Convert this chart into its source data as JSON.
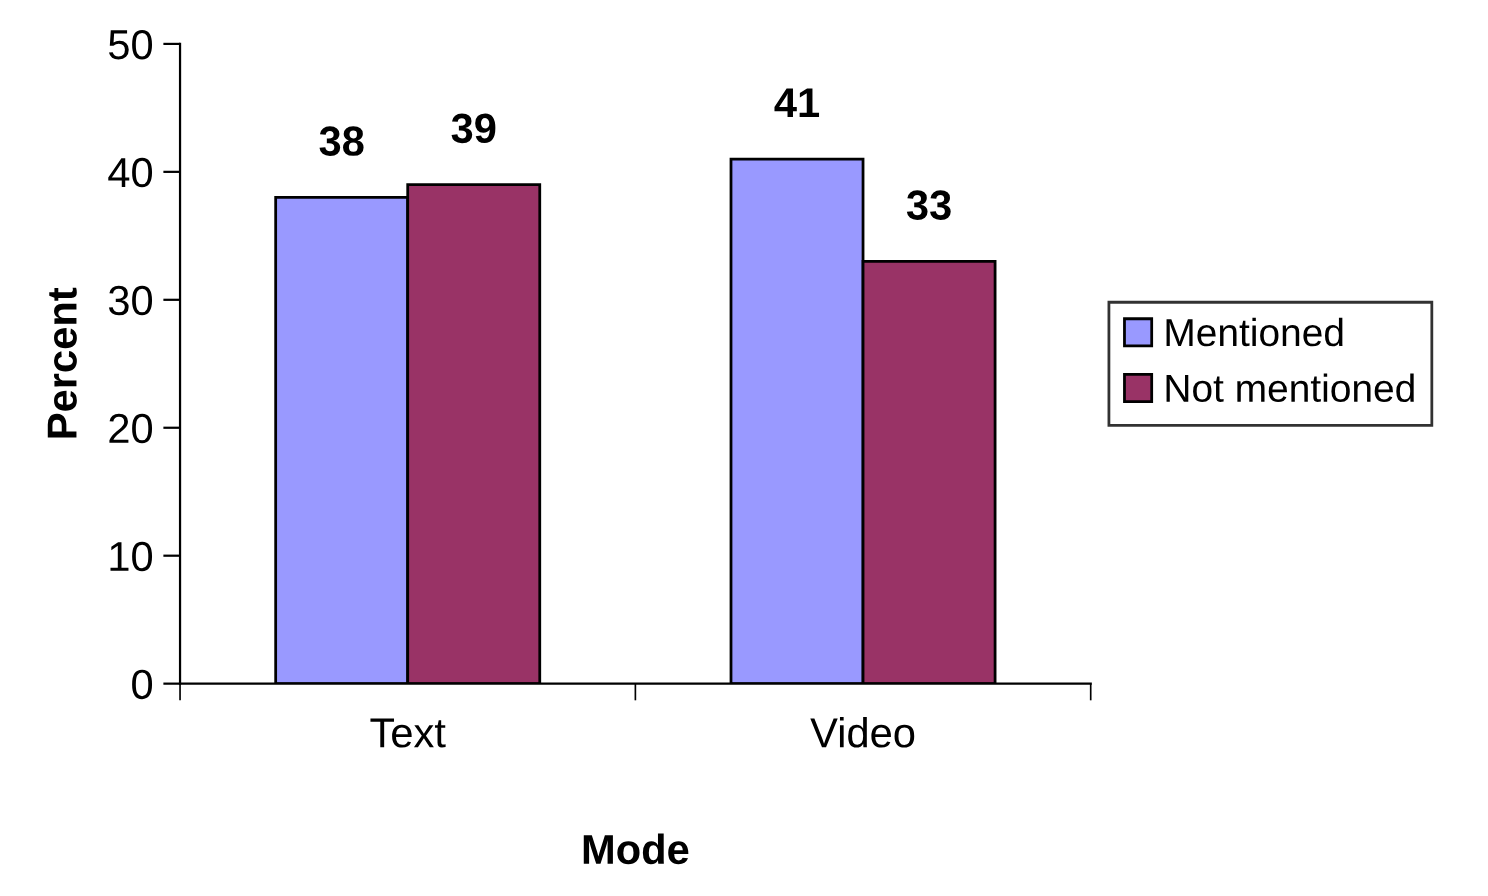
{
  "chart_data": {
    "type": "bar",
    "xlabel": "Mode",
    "ylabel": "Percent",
    "categories": [
      "Text",
      "Video"
    ],
    "series": [
      {
        "name": "Mentioned",
        "color": "#9999ff",
        "values": [
          38,
          41
        ]
      },
      {
        "name": "Not mentioned",
        "color": "#993366",
        "values": [
          39,
          33
        ]
      }
    ],
    "ylim": [
      0,
      50
    ],
    "yticks": [
      0,
      10,
      20,
      30,
      40,
      50
    ],
    "data_labels": true,
    "grid": false,
    "legend": "right"
  }
}
